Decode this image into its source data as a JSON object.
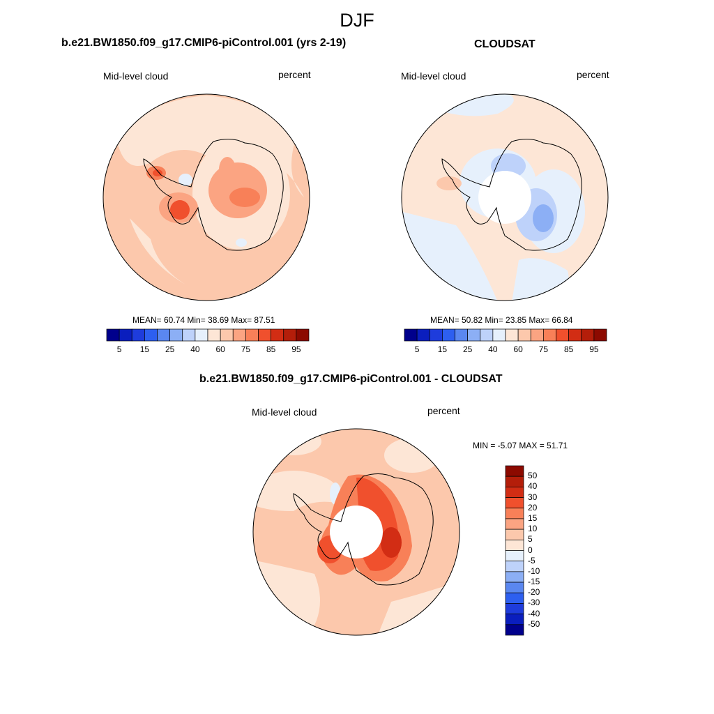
{
  "season": "DJF",
  "panels": [
    {
      "title": "b.e21.BW1850.f09_g17.CMIP6-piControl.001 (yrs 2-19)",
      "variable": "Mid-level cloud",
      "units": "percent",
      "stats": "MEAN=  60.74  Min=  38.69  Max=  87.51"
    },
    {
      "title": "CLOUDSAT",
      "variable": "Mid-level cloud",
      "units": "percent",
      "stats": "MEAN=  50.82  Min=  23.85  Max=  66.84"
    },
    {
      "title": "b.e21.BW1850.f09_g17.CMIP6-piControl.001 - CLOUDSAT",
      "variable": "Mid-level cloud",
      "units": "percent",
      "stats": "MIN =  -5.07 MAX =  51.71"
    }
  ],
  "colorbars": {
    "abs": {
      "labels": [
        "5",
        "15",
        "25",
        "40",
        "60",
        "75",
        "85",
        "95"
      ],
      "colors": [
        "#00008c",
        "#0a1ebe",
        "#1e3cdc",
        "#2d5ff0",
        "#5a87f0",
        "#8caff5",
        "#bed2fa",
        "#e6f0fc",
        "#fde6d6",
        "#fcc8ac",
        "#fba482",
        "#f88058",
        "#f0502d",
        "#d22d14",
        "#b41e0a",
        "#8c0a00"
      ]
    },
    "diff": {
      "labels": [
        "50",
        "40",
        "30",
        "20",
        "15",
        "10",
        "5",
        "0",
        "-5",
        "-10",
        "-15",
        "-20",
        "-30",
        "-40",
        "-50"
      ],
      "colors": [
        "#8c0a00",
        "#b41e0a",
        "#d22d14",
        "#f0502d",
        "#f88058",
        "#fba482",
        "#fcc8ac",
        "#fde6d6",
        "#e6f0fc",
        "#bed2fa",
        "#8caff5",
        "#5a87f0",
        "#2d5ff0",
        "#1e3cdc",
        "#0a1ebe",
        "#00008c"
      ]
    }
  }
}
